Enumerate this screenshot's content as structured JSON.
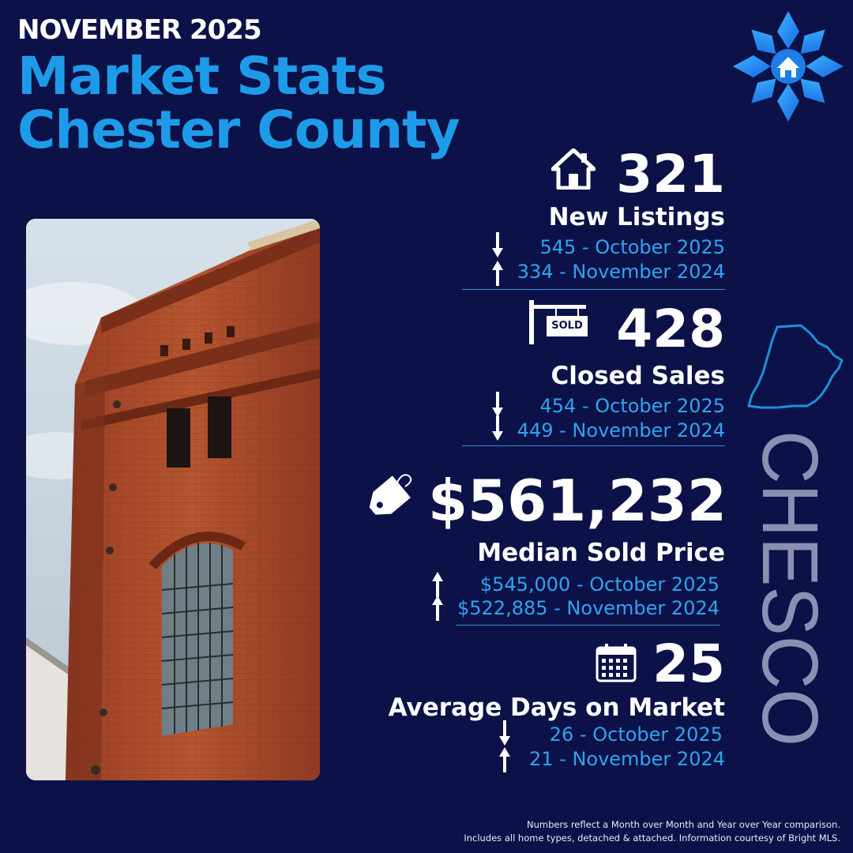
{
  "header": {
    "month": "NOVEMBER 2025",
    "title_line1": "Market Stats",
    "title_line2": "Chester County"
  },
  "colors": {
    "background": "#0c1248",
    "accent": "#1e9be8",
    "comparison_text": "#2fa4ef",
    "watermark": "#8b90b3"
  },
  "stats": [
    {
      "icon": "house-icon",
      "value": "321",
      "label": "New Listings",
      "comparisons": [
        {
          "direction": "down",
          "text": "545 - October 2025"
        },
        {
          "direction": "up",
          "text": "334 - November 2024"
        }
      ]
    },
    {
      "icon": "sold-sign-icon",
      "icon_text": "SOLD",
      "value": "428",
      "label": "Closed Sales",
      "comparisons": [
        {
          "direction": "down",
          "text": "454 - October 2025"
        },
        {
          "direction": "down",
          "text": "449 - November 2024"
        }
      ]
    },
    {
      "icon": "price-tag-icon",
      "value": "$561,232",
      "label": "Median Sold Price",
      "comparisons": [
        {
          "direction": "up",
          "text": "$545,000 - October 2025"
        },
        {
          "direction": "up",
          "text": "$522,885 - November 2024"
        }
      ]
    },
    {
      "icon": "calendar-icon",
      "value": "25",
      "label": "Average Days on Market",
      "comparisons": [
        {
          "direction": "down",
          "text": "26 - October 2025"
        },
        {
          "direction": "up",
          "text": "21 - November 2024"
        }
      ]
    }
  ],
  "watermark": "CHESCO",
  "footer": {
    "line1": "Numbers reflect a Month over Month and Year over Year comparison.",
    "line2": "Includes all home types, detached & attached. Information courtesy of Bright MLS."
  }
}
